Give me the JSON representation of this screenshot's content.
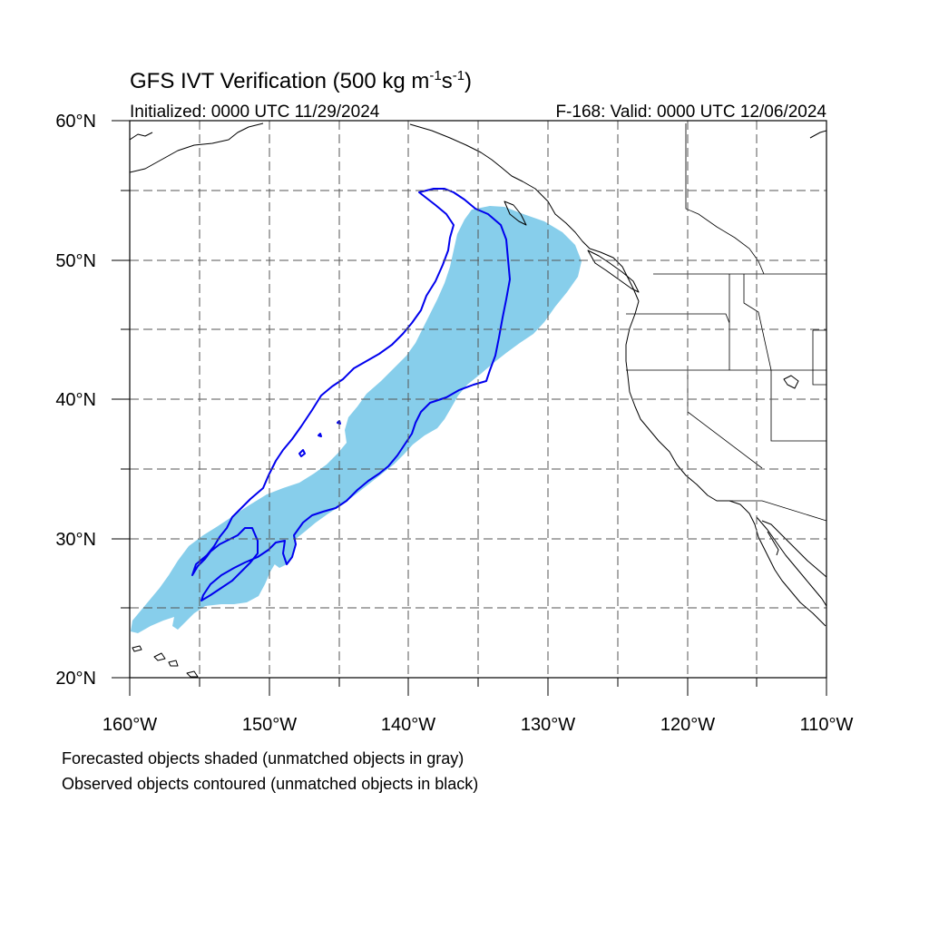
{
  "title": {
    "main": "GFS IVT Verification (500 kg m",
    "exp1": "-1",
    "mid": "s",
    "exp2": "-1",
    "close": ")"
  },
  "subtitle": {
    "left": "Initialized: 0000 UTC 11/29/2024",
    "right": "F-168: Valid: 0000 UTC 12/06/2024"
  },
  "map": {
    "lon_range": [
      -160,
      -110
    ],
    "lat_range": [
      20,
      60
    ],
    "lat_labels": [
      "20°N",
      "30°N",
      "40°N",
      "50°N",
      "60°N"
    ],
    "lon_labels": [
      "160°W",
      "150°W",
      "140°W",
      "130°W",
      "120°W",
      "110°W"
    ],
    "forecast_color": "#87ceeb",
    "observed_color": "#0000ee"
  },
  "notes": {
    "line1": "Forecasted objects shaded (unmatched objects in gray)",
    "line2": "Observed objects contoured (unmatched objects in black)"
  }
}
